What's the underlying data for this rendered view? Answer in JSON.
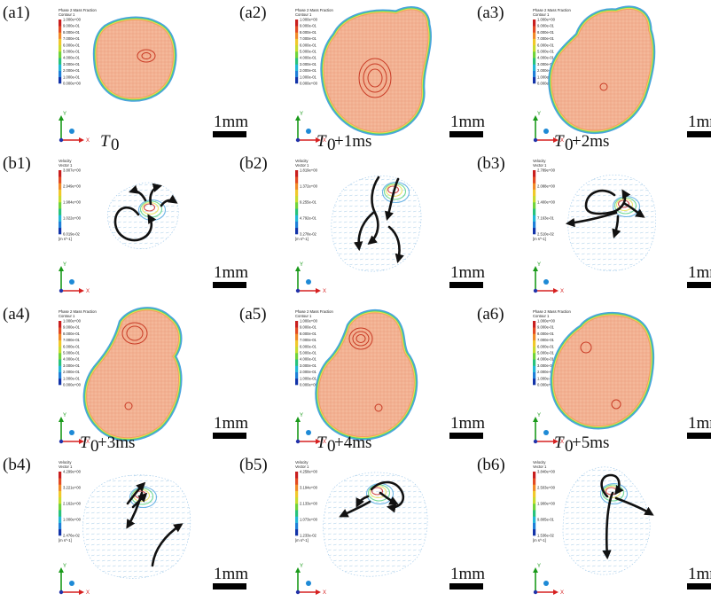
{
  "colors": {
    "black": "#000000",
    "rim_outer": "#4aa3e0",
    "rim_mid": "#4ed07a",
    "rim_inner": "#e8e04a",
    "fill_liquid": "#f4b89a",
    "arrow": "#111111",
    "axis_y": "#1a9a1a",
    "axis_x": "#d62020",
    "axis_z": "#1e8ad6"
  },
  "colormap": [
    "#1233a8",
    "#1e7fd8",
    "#22b7d8",
    "#27c27a",
    "#6fd33a",
    "#c7dc2f",
    "#f0c82a",
    "#f08a26",
    "#e34a22",
    "#c81e1e"
  ],
  "scale_bar_label": "1mm",
  "axes": {
    "y": "Y",
    "x": "X"
  },
  "legends": {
    "fraction": {
      "title": [
        "Phase 2 Mass Fraction",
        "Contour 1"
      ],
      "ticks": [
        "1.000e+00",
        "9.000e-01",
        "8.000e-01",
        "7.000e-01",
        "6.000e-01",
        "5.000e-01",
        "4.000e-01",
        "3.000e-01",
        "2.000e-01",
        "1.000e-01",
        "0.000e+00"
      ]
    },
    "velocity_units": "[m s^-1]"
  },
  "panels": [
    {
      "id": "a1",
      "label": "(a1)",
      "type": "fraction",
      "time": {
        "main": "T",
        "sub": "0",
        "rest": ""
      }
    },
    {
      "id": "a2",
      "label": "(a2)",
      "type": "fraction",
      "time": {
        "main": "T",
        "sub": "0",
        "rest": "+1ms"
      }
    },
    {
      "id": "a3",
      "label": "(a3)",
      "type": "fraction",
      "time": {
        "main": "T",
        "sub": "0",
        "rest": "+2ms"
      }
    },
    {
      "id": "b1",
      "label": "(b1)",
      "type": "velocity",
      "legend": {
        "title": [
          "Velocity",
          "Vector 1"
        ],
        "ticks": [
          "3.807e+00",
          "2.949e+00",
          "1.984e+00",
          "1.022e+00",
          "6.019e-02"
        ]
      }
    },
    {
      "id": "b2",
      "label": "(b2)",
      "type": "velocity",
      "legend": {
        "title": [
          "Velocity",
          "Vector 1"
        ],
        "ticks": [
          "1.819e+00",
          "1.372e+00",
          "9.255e-01",
          "4.792e-01",
          "3.278e-02"
        ]
      }
    },
    {
      "id": "b3",
      "label": "(b3)",
      "type": "velocity",
      "legend": {
        "title": [
          "Velocity",
          "Vector 1"
        ],
        "ticks": [
          "2.789e+00",
          "2.088e+00",
          "1.400e+00",
          "7.163e-01",
          "2.510e-02"
        ]
      }
    },
    {
      "id": "a4",
      "label": "(a4)",
      "type": "fraction",
      "time": {
        "main": "T",
        "sub": "0",
        "rest": "+3ms"
      }
    },
    {
      "id": "a5",
      "label": "(a5)",
      "type": "fraction",
      "time": {
        "main": "T",
        "sub": "0",
        "rest": "+4ms"
      }
    },
    {
      "id": "a6",
      "label": "(a6)",
      "type": "fraction",
      "time": {
        "main": "T",
        "sub": "0",
        "rest": "+5ms"
      }
    },
    {
      "id": "b4",
      "label": "(b4)",
      "type": "velocity",
      "legend": {
        "title": [
          "Velocity",
          "Vector 1"
        ],
        "ticks": [
          "4.299e+00",
          "3.221e+00",
          "2.162e+00",
          "1.000e+00",
          "2.476e-02"
        ]
      }
    },
    {
      "id": "b5",
      "label": "(b5)",
      "type": "velocity",
      "legend": {
        "title": [
          "Velocity",
          "Vector 1"
        ],
        "ticks": [
          "4.258e+00",
          "3.194e+00",
          "2.133e+00",
          "1.073e+00",
          "1.233e-02"
        ]
      }
    },
    {
      "id": "b6",
      "label": "(b6)",
      "type": "velocity",
      "legend": {
        "title": [
          "Velocity",
          "Vector 1"
        ],
        "ticks": [
          "3.840e+00",
          "2.503e+00",
          "1.900e+00",
          "9.805e-01",
          "1.536e-02"
        ]
      }
    }
  ]
}
